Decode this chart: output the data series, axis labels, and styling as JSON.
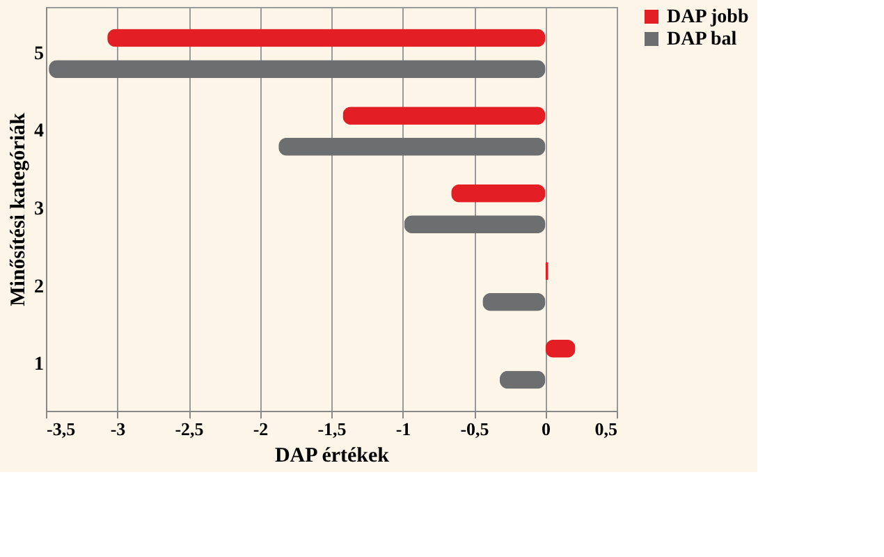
{
  "chart_data": {
    "type": "bar",
    "orientation": "horizontal",
    "xlabel": "DAP értékek",
    "ylabel": "Minősítési kategóriák",
    "categories": [
      "5",
      "4",
      "3",
      "2",
      "1"
    ],
    "series": [
      {
        "name": "DAP jobb",
        "color": "#e31e24",
        "values": [
          -3.07,
          -1.42,
          -0.66,
          0.02,
          0.21
        ]
      },
      {
        "name": "DAP bal",
        "color": "#6d6e70",
        "values": [
          -3.48,
          -1.87,
          -0.99,
          -0.44,
          -0.32
        ]
      }
    ],
    "xlim": [
      -3.5,
      0.5
    ],
    "xticks": [
      {
        "value": -3.5,
        "label": "-3,5"
      },
      -3,
      {
        "value": -2.5,
        "label": "-2,5"
      },
      -2,
      {
        "value": -1.5,
        "label": "-1,5"
      },
      -1,
      {
        "value": -0.5,
        "label": "-0,5"
      },
      0,
      {
        "value": 0.5,
        "label": "0,5"
      }
    ],
    "grid": "x",
    "legend": "right"
  }
}
